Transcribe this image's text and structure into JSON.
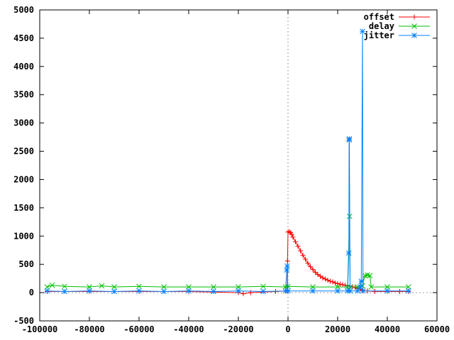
{
  "chart_data": {
    "type": "line",
    "title": "",
    "xlabel": "",
    "ylabel": "",
    "xlim": [
      -100000,
      60000
    ],
    "ylim": [
      -500,
      5000
    ],
    "x_ticks": [
      -100000,
      -80000,
      -60000,
      -40000,
      -20000,
      0,
      20000,
      40000,
      60000
    ],
    "y_ticks": [
      -500,
      0,
      500,
      1000,
      1500,
      2000,
      2500,
      3000,
      3500,
      4000,
      4500,
      5000
    ],
    "grid": false,
    "zero_axes": true,
    "legend_position": "top-right",
    "series": [
      {
        "name": "offset",
        "color": "#ff0000",
        "marker": "plus",
        "points": [
          [
            -97000,
            20
          ],
          [
            -80000,
            20
          ],
          [
            -60000,
            20
          ],
          [
            -40000,
            20
          ],
          [
            -20000,
            0
          ],
          [
            -18000,
            -20
          ],
          [
            -15000,
            0
          ],
          [
            -5000,
            20
          ],
          [
            -300,
            30
          ],
          [
            -200,
            560
          ],
          [
            0,
            1070
          ],
          [
            500,
            1080
          ],
          [
            1000,
            1060
          ],
          [
            1500,
            1030
          ],
          [
            2000,
            980
          ],
          [
            3000,
            900
          ],
          [
            4000,
            820
          ],
          [
            5000,
            740
          ],
          [
            6000,
            660
          ],
          [
            7000,
            590
          ],
          [
            8000,
            520
          ],
          [
            9000,
            460
          ],
          [
            10000,
            410
          ],
          [
            11000,
            360
          ],
          [
            12000,
            320
          ],
          [
            13000,
            290
          ],
          [
            14000,
            260
          ],
          [
            15000,
            240
          ],
          [
            16000,
            220
          ],
          [
            17000,
            200
          ],
          [
            18000,
            190
          ],
          [
            19000,
            170
          ],
          [
            20000,
            160
          ],
          [
            21000,
            150
          ],
          [
            22000,
            140
          ],
          [
            23000,
            130
          ],
          [
            24000,
            120
          ],
          [
            25000,
            110
          ],
          [
            26000,
            100
          ],
          [
            27000,
            90
          ],
          [
            28000,
            70
          ],
          [
            29000,
            60
          ],
          [
            30000,
            40
          ],
          [
            32000,
            30
          ],
          [
            35000,
            20
          ],
          [
            40000,
            20
          ],
          [
            45000,
            20
          ],
          [
            48500,
            20
          ]
        ]
      },
      {
        "name": "delay",
        "color": "#00c000",
        "marker": "x",
        "points": [
          [
            -97000,
            100
          ],
          [
            -95000,
            130
          ],
          [
            -90000,
            110
          ],
          [
            -80000,
            100
          ],
          [
            -75000,
            120
          ],
          [
            -70000,
            100
          ],
          [
            -60000,
            110
          ],
          [
            -50000,
            100
          ],
          [
            -40000,
            100
          ],
          [
            -30000,
            100
          ],
          [
            -20000,
            100
          ],
          [
            -10000,
            110
          ],
          [
            -1000,
            100
          ],
          [
            0,
            110
          ],
          [
            10000,
            100
          ],
          [
            20000,
            100
          ],
          [
            24000,
            100
          ],
          [
            24800,
            1350
          ],
          [
            25000,
            100
          ],
          [
            28000,
            100
          ],
          [
            30000,
            120
          ],
          [
            31000,
            300
          ],
          [
            32000,
            310
          ],
          [
            33000,
            300
          ],
          [
            33500,
            100
          ],
          [
            40000,
            100
          ],
          [
            48500,
            100
          ]
        ]
      },
      {
        "name": "jitter",
        "color": "#0080ff",
        "marker": "star",
        "points": [
          [
            -97000,
            30
          ],
          [
            -90000,
            20
          ],
          [
            -80000,
            30
          ],
          [
            -70000,
            20
          ],
          [
            -60000,
            30
          ],
          [
            -50000,
            20
          ],
          [
            -40000,
            30
          ],
          [
            -30000,
            20
          ],
          [
            -20000,
            30
          ],
          [
            -10000,
            20
          ],
          [
            -1000,
            30
          ],
          [
            -500,
            400
          ],
          [
            -300,
            470
          ],
          [
            0,
            30
          ],
          [
            10000,
            30
          ],
          [
            20000,
            30
          ],
          [
            24000,
            30
          ],
          [
            24500,
            700
          ],
          [
            24600,
            2700
          ],
          [
            24700,
            2720
          ],
          [
            25000,
            30
          ],
          [
            28000,
            30
          ],
          [
            29000,
            100
          ],
          [
            29500,
            200
          ],
          [
            30000,
            4620
          ],
          [
            30200,
            30
          ],
          [
            40000,
            30
          ],
          [
            48500,
            30
          ]
        ]
      }
    ]
  }
}
